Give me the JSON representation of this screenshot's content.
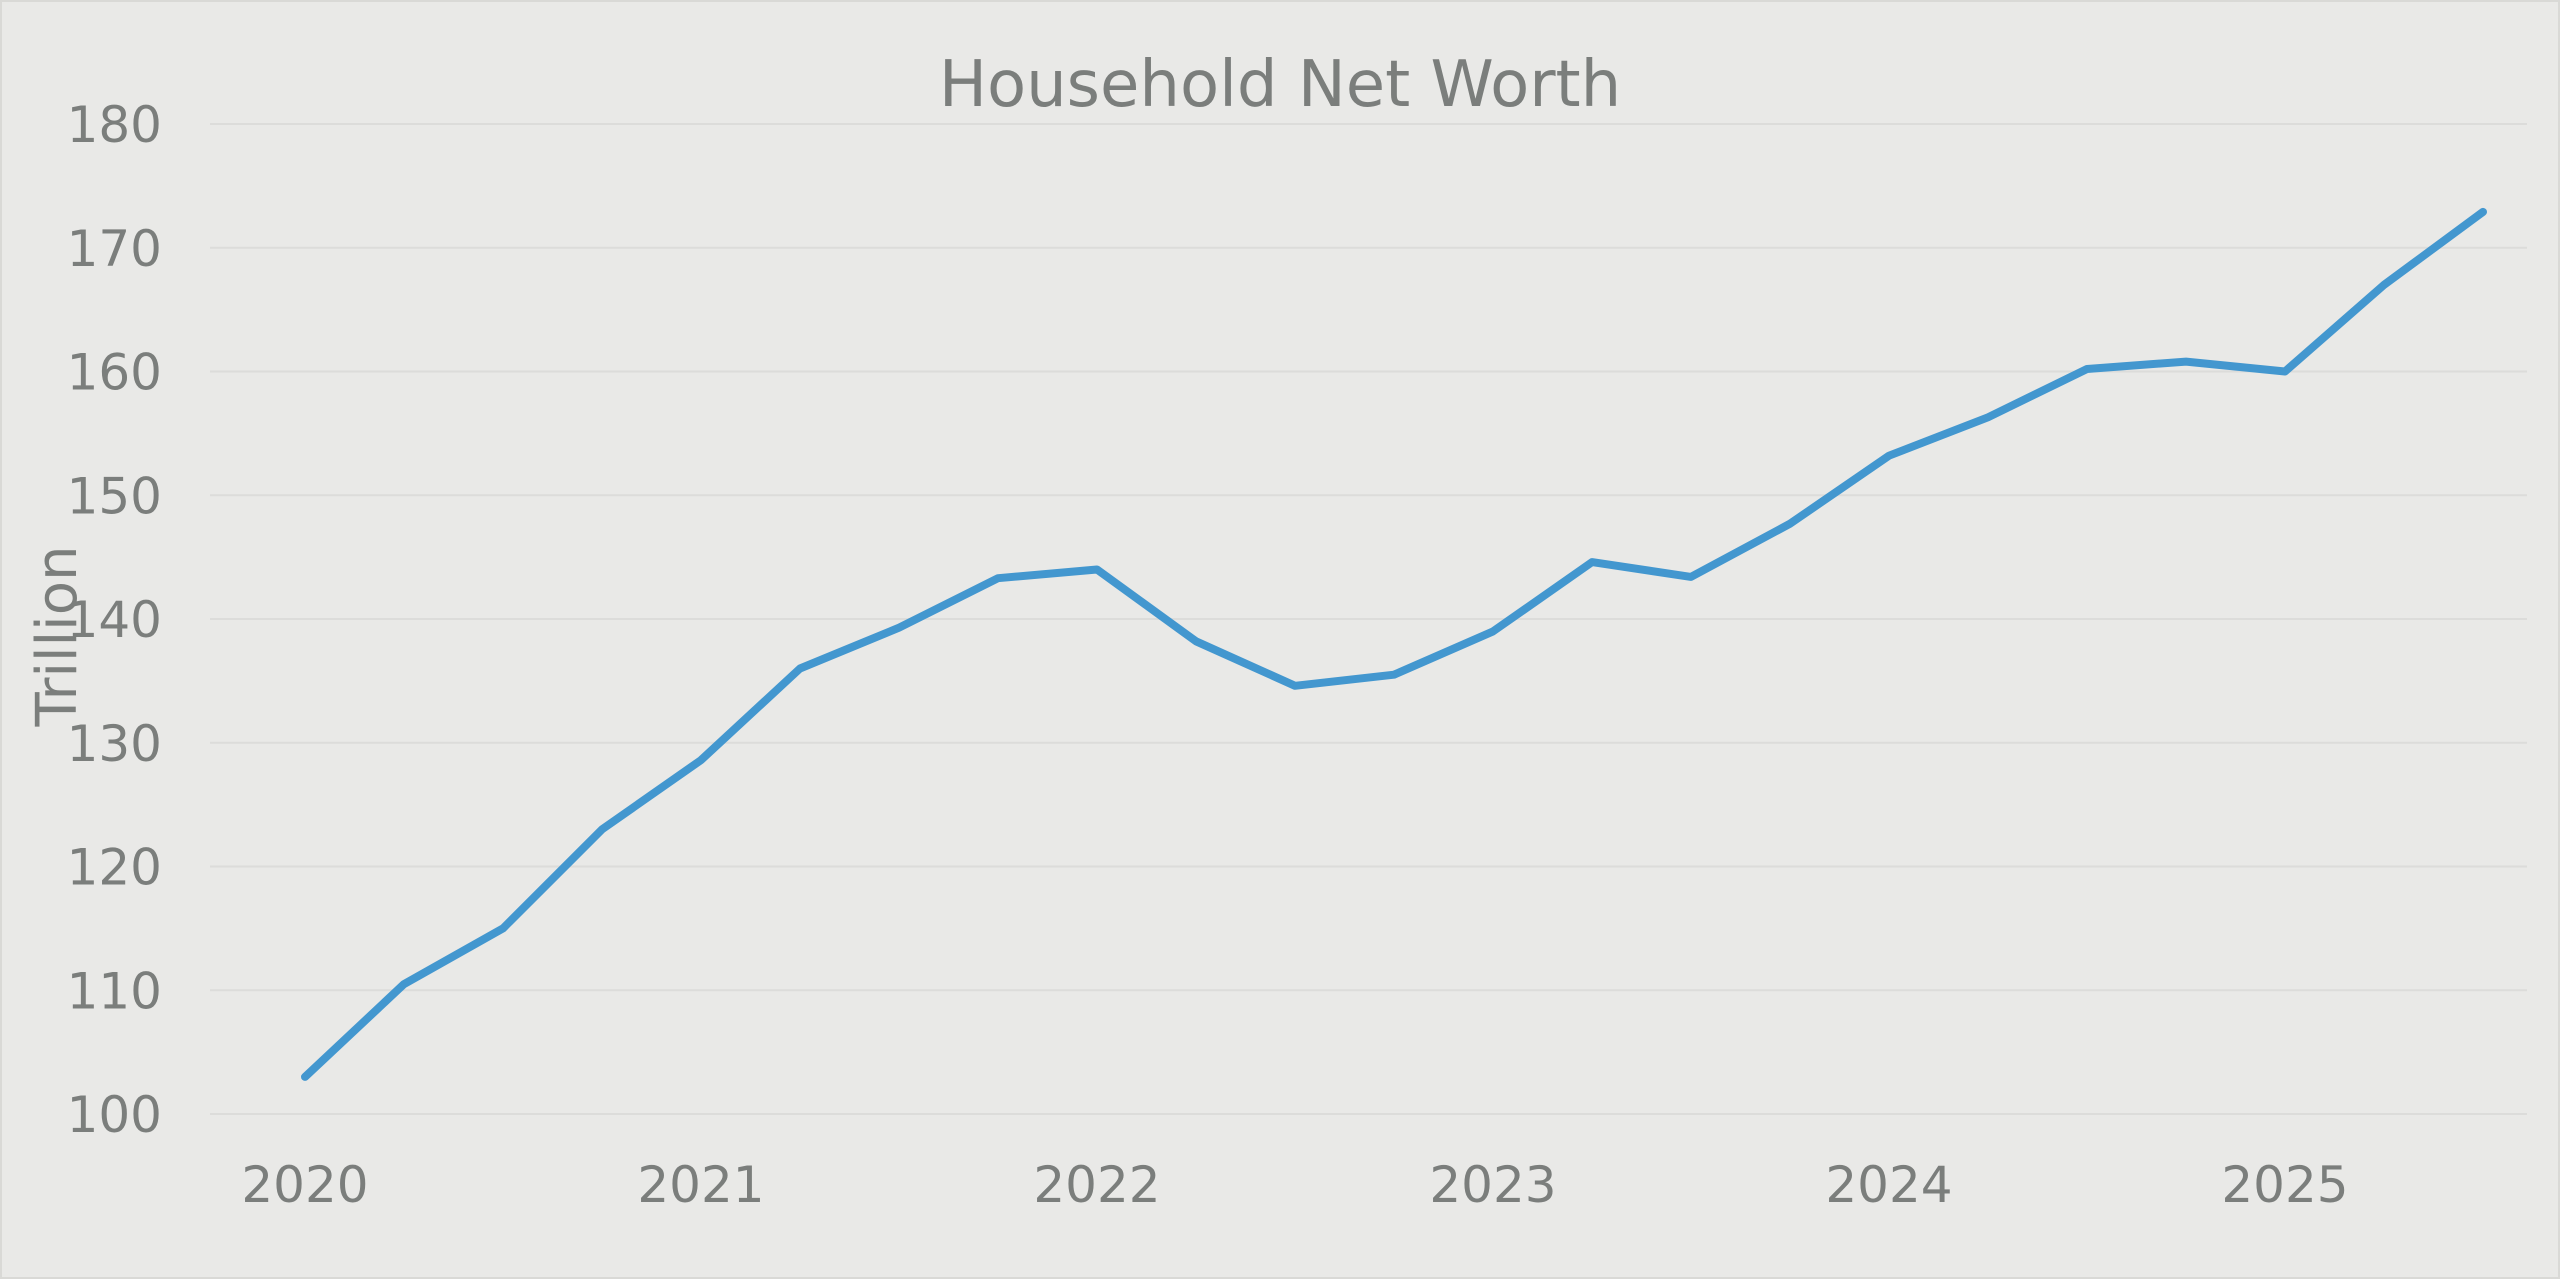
{
  "chart_data": {
    "type": "line",
    "title": "Household Net Worth",
    "xlabel": "",
    "ylabel": "Trillion",
    "ylim": [
      100,
      180
    ],
    "yticks": [
      100,
      110,
      120,
      130,
      140,
      150,
      160,
      170,
      180
    ],
    "xticks": [
      "2020",
      "2021",
      "2022",
      "2023",
      "2024",
      "2025"
    ],
    "grid": true,
    "legend": "none",
    "colors": {
      "line": "#4397cf",
      "text": "#7b7e7c",
      "grid": "#dcdcda",
      "background": "#e9e9e7"
    },
    "series": [
      {
        "x": [
          "2020-Q1",
          "2020-Q2",
          "2020-Q3",
          "2020-Q4",
          "2021-Q1",
          "2021-Q2",
          "2021-Q3",
          "2021-Q4",
          "2022-Q1",
          "2022-Q2",
          "2022-Q3",
          "2022-Q4",
          "2023-Q1",
          "2023-Q2",
          "2023-Q3",
          "2023-Q4",
          "2024-Q1",
          "2024-Q2",
          "2024-Q3",
          "2024-Q4",
          "2025-Q1",
          "2025-Q2",
          "2025-Q3"
        ],
        "values": [
          103.0,
          110.5,
          115.0,
          123.0,
          128.6,
          136.0,
          139.3,
          143.3,
          144.0,
          138.2,
          134.6,
          135.5,
          139.0,
          144.6,
          143.4,
          147.7,
          153.2,
          156.3,
          160.2,
          160.8,
          160.0,
          167.0,
          172.9
        ]
      }
    ]
  }
}
